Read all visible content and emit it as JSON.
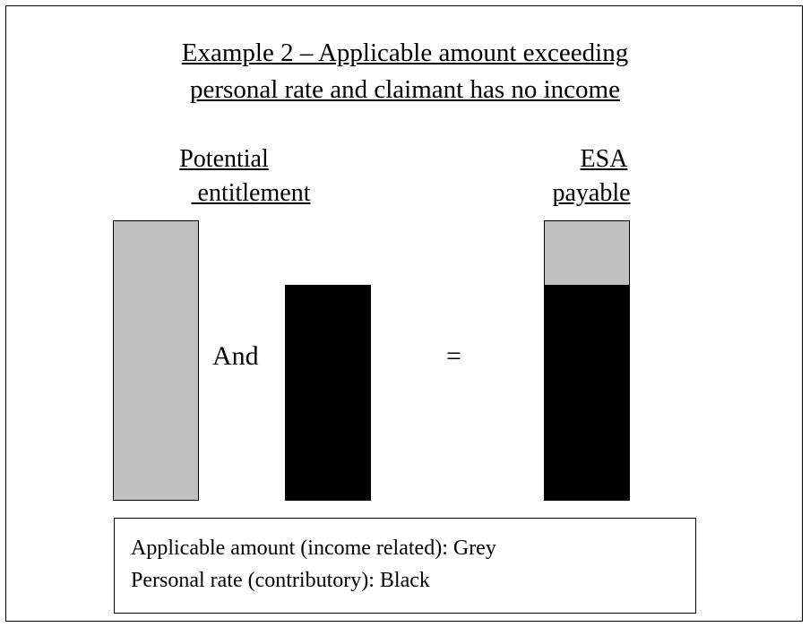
{
  "diagram": {
    "title_line1": "Example 2 – Applicable amount exceeding",
    "title_line2": "personal rate and claimant has no income",
    "left_heading_line1": "Potential",
    "left_heading_line2": " entitlement",
    "right_heading_line1": "ESA",
    "right_heading_line2": "payable",
    "and_label": "And",
    "equals_label": "=",
    "legend": {
      "line1": "Applicable amount (income related): Grey",
      "line2": "Personal rate (contributory): Black"
    },
    "colors": {
      "applicable_amount": "#c0c0c0",
      "personal_rate": "#000000",
      "border": "#000000",
      "background": "#ffffff"
    }
  }
}
